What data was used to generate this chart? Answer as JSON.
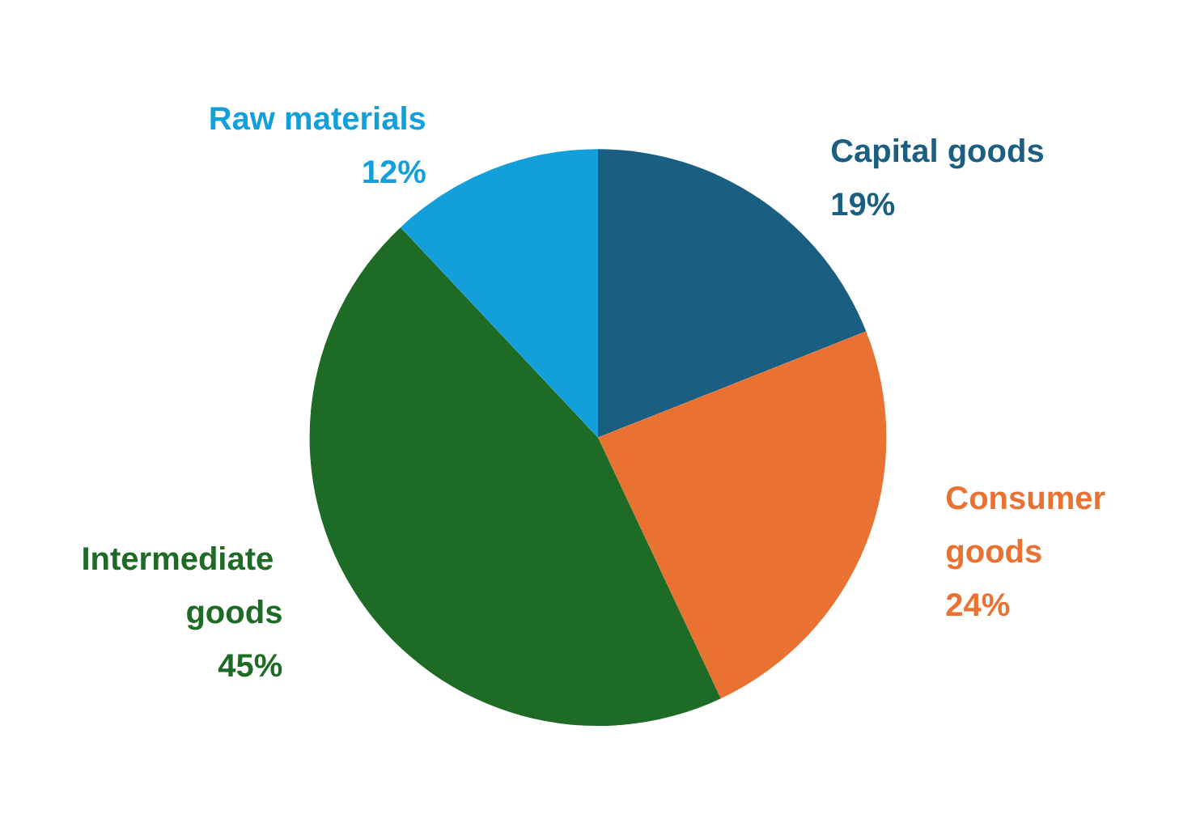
{
  "chart_data": {
    "type": "pie",
    "categories": [
      "Capital goods",
      "Consumer goods",
      "Intermediate goods",
      "Raw materials"
    ],
    "values": [
      19,
      24,
      45,
      12
    ],
    "value_labels": [
      "19%",
      "24%",
      "45%",
      "12%"
    ],
    "colors": [
      "#1a5f82",
      "#e97132",
      "#1d6b24",
      "#139fd9"
    ],
    "legend": false
  }
}
